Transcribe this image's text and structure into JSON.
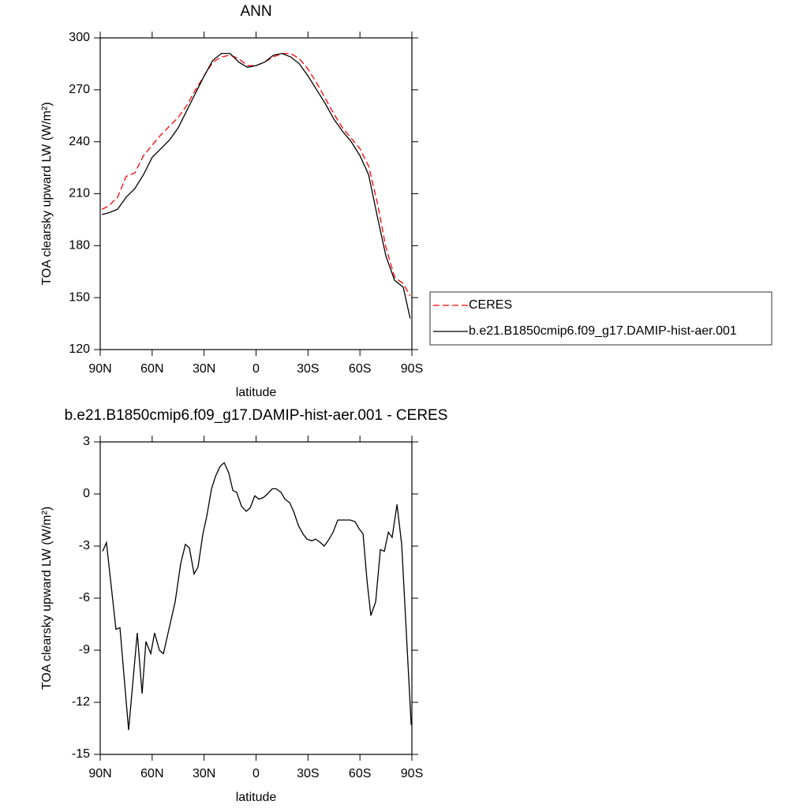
{
  "chart_data": [
    {
      "type": "line",
      "title": "ANN",
      "xlabel": "latitude",
      "ylabel": "TOA clearsky upward LW (W/m²)",
      "xlim": [
        90,
        -90
      ],
      "xticks": [
        {
          "value": 90,
          "label": "90N"
        },
        {
          "value": 60,
          "label": "60N"
        },
        {
          "value": 30,
          "label": "30N"
        },
        0,
        {
          "value": -30,
          "label": "30S"
        },
        {
          "value": -60,
          "label": "60S"
        },
        {
          "value": -90,
          "label": "90S"
        }
      ],
      "ylim": [
        120,
        300
      ],
      "yticks": [
        120,
        150,
        180,
        210,
        240,
        270,
        300
      ],
      "legend": "outside right",
      "x": [
        89,
        85,
        80,
        75,
        70,
        65,
        60,
        55,
        50,
        45,
        40,
        35,
        30,
        25,
        20,
        15,
        10,
        5,
        0,
        -5,
        -10,
        -15,
        -20,
        -25,
        -30,
        -35,
        -40,
        -45,
        -50,
        -55,
        -60,
        -65,
        -70,
        -75,
        -80,
        -85,
        -89
      ],
      "series": [
        {
          "name": "CERES",
          "color": "#ff0000",
          "style": "dashed",
          "values": [
            201,
            203,
            208,
            220,
            222,
            232,
            238,
            244,
            249,
            254,
            261,
            270,
            278,
            286,
            289,
            290,
            288,
            284,
            284,
            286,
            289,
            291,
            291,
            288,
            282,
            274,
            265,
            256,
            248,
            242,
            236,
            226,
            205,
            179,
            162,
            158,
            151
          ]
        },
        {
          "name": "b.e21.B1850cmip6.f09_g17.DAMIP-hist-aer.001",
          "color": "#000000",
          "style": "solid",
          "values": [
            198,
            199,
            201,
            208,
            213,
            221,
            231,
            236,
            241,
            248,
            258,
            268,
            278,
            287,
            291,
            291,
            286,
            283,
            284,
            286,
            290,
            291,
            289,
            285,
            278,
            270,
            262,
            253,
            246,
            240,
            232,
            221,
            197,
            174,
            160,
            156,
            138
          ]
        }
      ]
    },
    {
      "type": "line",
      "title": "b.e21.B1850cmip6.f09_g17.DAMIP-hist-aer.001 - CERES",
      "xlabel": "latitude",
      "ylabel": "TOA clearsky upward LW (W/m²)",
      "xlim": [
        90,
        -90
      ],
      "xticks": [
        {
          "value": 90,
          "label": "90N"
        },
        {
          "value": 60,
          "label": "60N"
        },
        {
          "value": 30,
          "label": "30N"
        },
        0,
        {
          "value": -30,
          "label": "30S"
        },
        {
          "value": -60,
          "label": "60S"
        },
        {
          "value": -90,
          "label": "90S"
        }
      ],
      "ylim": [
        -15,
        3
      ],
      "yticks": [
        -15,
        -12,
        -9,
        -6,
        -3,
        0,
        3
      ],
      "color": "#000000",
      "x": [
        88.6,
        86.4,
        80.9,
        78.6,
        73.6,
        68.6,
        65.8,
        63.6,
        60.8,
        58.6,
        55.8,
        53.5,
        50.8,
        46.7,
        43.5,
        40.8,
        38.5,
        35.8,
        33.5,
        30.7,
        28.5,
        25.7,
        23.5,
        20.7,
        18.4,
        15.7,
        13.4,
        11.2,
        8.4,
        5.7,
        3.4,
        0.7,
        -1.6,
        -4.3,
        -6.6,
        -9.4,
        -11.6,
        -14.4,
        -16.7,
        -19.4,
        -21.7,
        -24.4,
        -27.1,
        -29.4,
        -32.2,
        -34.4,
        -37.2,
        -39.4,
        -42.2,
        -44.5,
        -47.2,
        -49.5,
        -54.5,
        -57.2,
        -59.5,
        -61.8,
        -64.1,
        -66.3,
        -69.1,
        -71.8,
        -74.1,
        -76.4,
        -78.6,
        -81.4,
        -84.1,
        -86.8,
        -89.6
      ],
      "values": [
        -3.3,
        -2.8,
        -7.8,
        -7.7,
        -13.6,
        -8,
        -11.5,
        -8.5,
        -9.2,
        -8,
        -9,
        -9.2,
        -8,
        -6.2,
        -4,
        -2.9,
        -3.1,
        -4.6,
        -4.2,
        -2.3,
        -1.3,
        0.3,
        1,
        1.6,
        1.8,
        1.2,
        0.2,
        0.1,
        -0.7,
        -1,
        -0.8,
        -0.1,
        -0.3,
        -0.2,
        0,
        0.3,
        0.3,
        0.1,
        -0.3,
        -0.5,
        -1,
        -1.8,
        -2.3,
        -2.6,
        -2.7,
        -2.6,
        -2.8,
        -3,
        -2.6,
        -2.2,
        -1.5,
        -1.5,
        -1.5,
        -1.6,
        -2,
        -2.3,
        -5,
        -7,
        -6.2,
        -3.2,
        -3.3,
        -2.2,
        -2.5,
        -0.6,
        -2.9,
        -8,
        -13.3
      ]
    }
  ]
}
